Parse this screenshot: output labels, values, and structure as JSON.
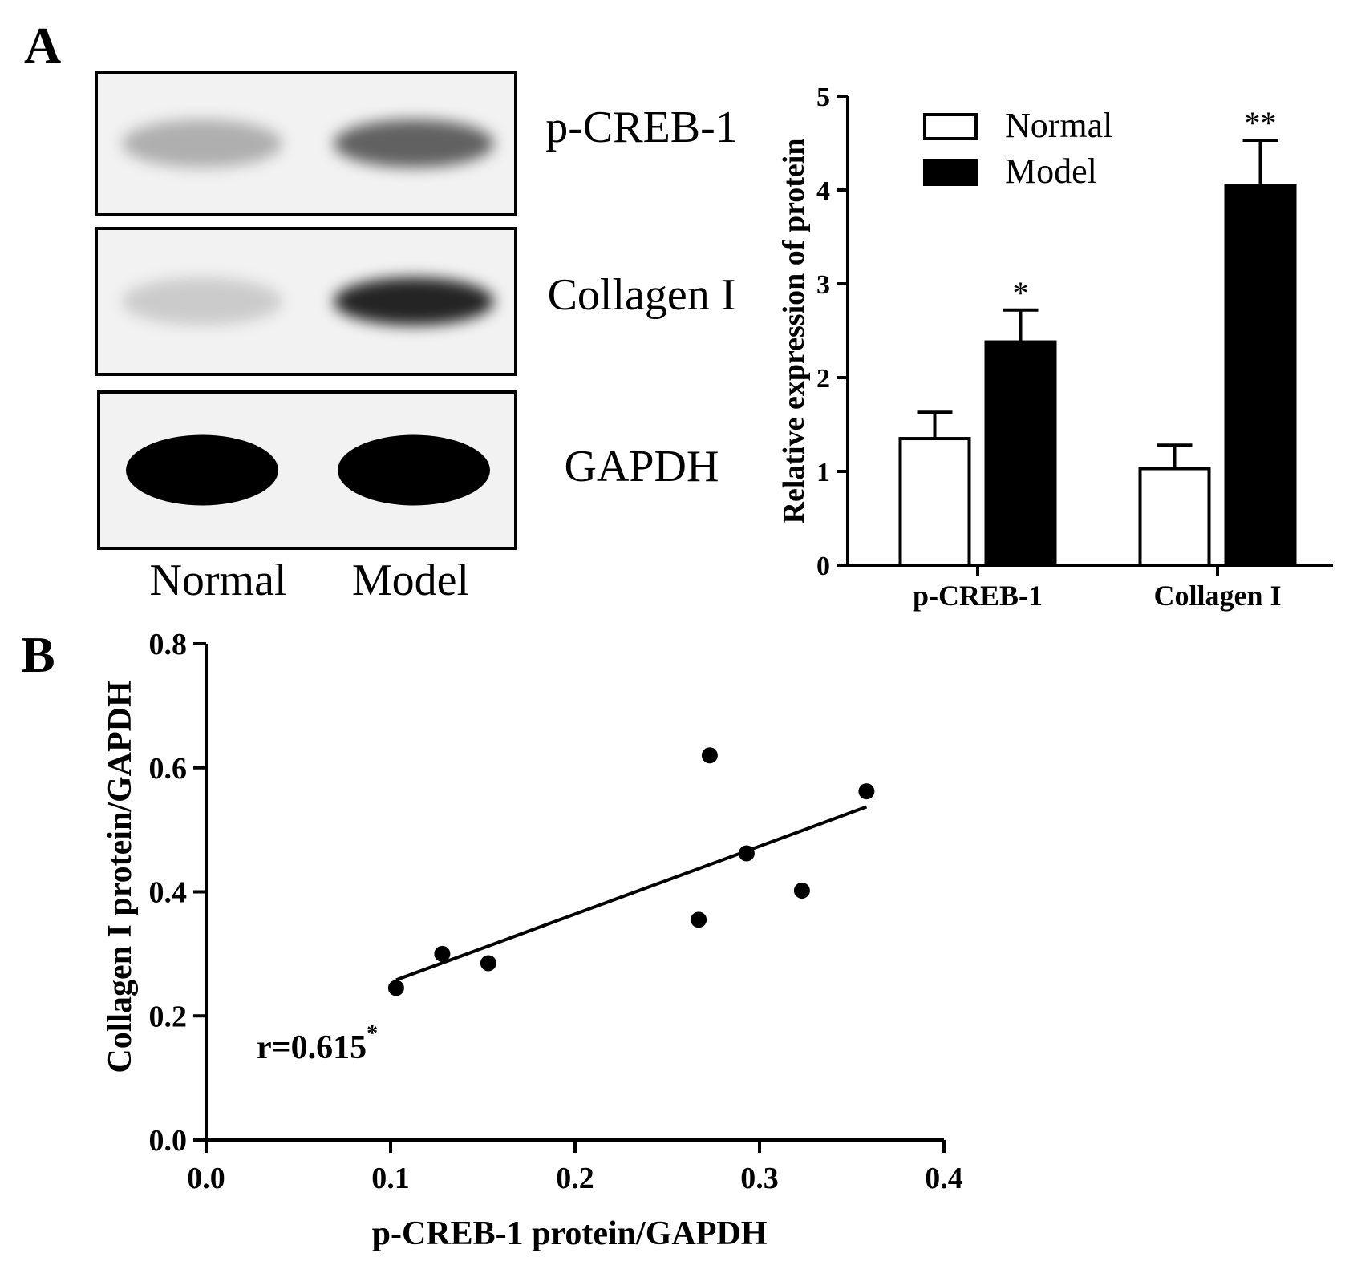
{
  "panel_a": {
    "letter": "A",
    "blot": {
      "rows": [
        "p-CREB-1",
        "Collagen I",
        "GAPDH"
      ],
      "lanes": [
        "Normal",
        "Model"
      ],
      "band_intensity": [
        [
          0.28,
          0.6
        ],
        [
          0.16,
          0.85
        ],
        [
          1.0,
          1.0
        ]
      ]
    }
  },
  "panel_b": {
    "letter": "B"
  },
  "chart_data": [
    {
      "type": "bar",
      "title": "",
      "categories": [
        "p-CREB-1",
        "Collagen I"
      ],
      "series": [
        {
          "name": "Normal",
          "values": [
            1.35,
            1.03
          ],
          "errors": [
            0.28,
            0.25
          ],
          "color": "#ffffff"
        },
        {
          "name": "Model",
          "values": [
            2.38,
            4.05
          ],
          "errors": [
            0.34,
            0.48
          ],
          "color": "#000000"
        }
      ],
      "significance": [
        [
          "",
          "*"
        ],
        [
          "",
          "**"
        ]
      ],
      "xlabel": "",
      "ylabel": "Relative expression of protein",
      "ylim": [
        0,
        5
      ],
      "yticks": [
        "0",
        "1",
        "2",
        "3",
        "4",
        "5"
      ],
      "legend_position": "top-left"
    },
    {
      "type": "scatter",
      "title": "",
      "xlabel": "p-CREB-1 protein/GAPDH",
      "ylabel": "Collagen I protein/GAPDH",
      "xlim": [
        0,
        0.4
      ],
      "ylim": [
        0,
        0.8
      ],
      "xticks": [
        "0.0",
        "0.1",
        "0.2",
        "0.3",
        "0.4"
      ],
      "yticks": [
        "0.0",
        "0.2",
        "0.4",
        "0.6",
        "0.8"
      ],
      "points": [
        {
          "x": 0.103,
          "y": 0.245
        },
        {
          "x": 0.128,
          "y": 0.3
        },
        {
          "x": 0.153,
          "y": 0.285
        },
        {
          "x": 0.267,
          "y": 0.355
        },
        {
          "x": 0.273,
          "y": 0.62
        },
        {
          "x": 0.293,
          "y": 0.462
        },
        {
          "x": 0.323,
          "y": 0.402
        },
        {
          "x": 0.358,
          "y": 0.562
        }
      ],
      "fit_line": {
        "x": [
          0.103,
          0.358
        ],
        "y": [
          0.258,
          0.537
        ]
      },
      "annotation": {
        "text": "r=0.615",
        "superscript": "*"
      }
    }
  ]
}
